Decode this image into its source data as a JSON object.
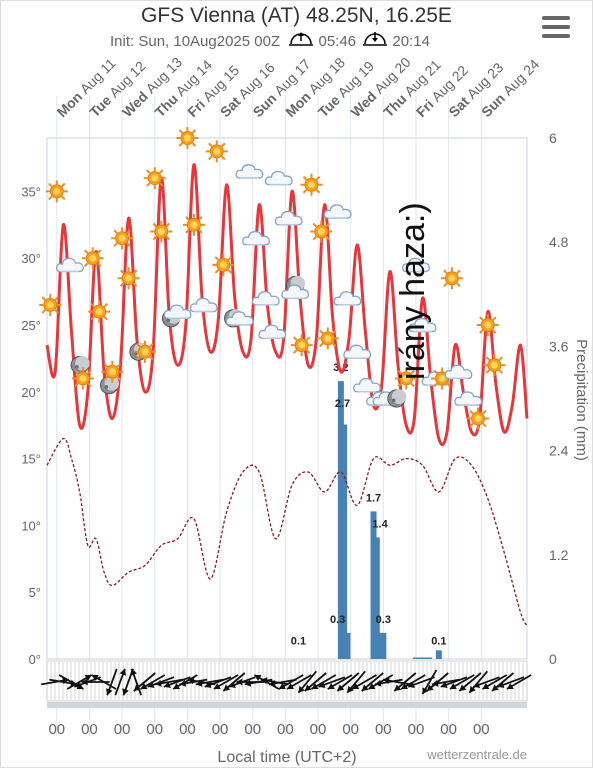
{
  "header": {
    "title": "GFS Vienna (AT) 48.25N, 16.25E",
    "init_label": "Init: Sun, 10Aug2025 00Z",
    "sunrise": "05:46",
    "sunset": "20:14"
  },
  "overlay_text": "irány haza:)",
  "credit": "wetterzentrale.de",
  "colors": {
    "temperature": "#e8363a",
    "dewpoint": "#8b1a1a",
    "precipitation": "#4682b4"
  },
  "chart_data": {
    "type": "line",
    "title": "GFS Vienna (AT) 48.25N, 16.25E",
    "xlabel": "Local time (UTC+2)",
    "ylabel_right": "Precipitation (mm)",
    "y_left_ticks": [
      "0°",
      "5°",
      "10°",
      "15°",
      "20°",
      "25°",
      "30°",
      "35°"
    ],
    "y_left_range": [
      0,
      39
    ],
    "y_right_ticks": [
      "0",
      "1.2",
      "2.4",
      "3.6",
      "4.8",
      "6"
    ],
    "y_right_range": [
      0,
      6
    ],
    "x_range": [
      0,
      14.7
    ],
    "day_labels": [
      {
        "day": "Mon",
        "date": "Aug 11"
      },
      {
        "day": "Tue",
        "date": "Aug 12"
      },
      {
        "day": "Wed",
        "date": "Aug 13"
      },
      {
        "day": "Thu",
        "date": "Aug 14"
      },
      {
        "day": "Fri",
        "date": "Aug 15"
      },
      {
        "day": "Sat",
        "date": "Aug 16"
      },
      {
        "day": "Sun",
        "date": "Aug 17"
      },
      {
        "day": "Mon",
        "date": "Aug 18"
      },
      {
        "day": "Tue",
        "date": "Aug 19"
      },
      {
        "day": "Wed",
        "date": "Aug 20"
      },
      {
        "day": "Thu",
        "date": "Aug 21"
      },
      {
        "day": "Fri",
        "date": "Aug 22"
      },
      {
        "day": "Sat",
        "date": "Aug 23"
      },
      {
        "day": "Sun",
        "date": "Aug 24"
      }
    ],
    "bottom_ticks": [
      "00",
      "00",
      "00",
      "00",
      "00",
      "00",
      "00",
      "00",
      "00",
      "00",
      "00",
      "00",
      "00",
      "00"
    ],
    "series": [
      {
        "name": "temperature",
        "x": [
          0.0,
          0.25,
          0.5,
          0.75,
          1.0,
          1.25,
          1.5,
          1.75,
          2.0,
          2.25,
          2.5,
          2.75,
          3.0,
          3.25,
          3.5,
          3.75,
          4.0,
          4.25,
          4.5,
          4.75,
          5.0,
          5.25,
          5.5,
          5.75,
          6.0,
          6.25,
          6.5,
          6.75,
          7.0,
          7.25,
          7.5,
          7.75,
          8.0,
          8.25,
          8.5,
          8.75,
          9.0,
          9.25,
          9.5,
          9.75,
          10.0,
          10.25,
          10.5,
          10.75,
          11.0,
          11.25,
          11.5,
          11.75,
          12.0,
          12.25,
          12.5,
          12.75,
          13.0,
          13.25,
          13.5,
          13.75,
          14.0,
          14.25,
          14.5,
          14.7
        ],
        "y": [
          23.5,
          21.5,
          32.5,
          24.5,
          17.5,
          20,
          30.5,
          21.5,
          18,
          22,
          33,
          24,
          20,
          23,
          36,
          25.5,
          22,
          25,
          37,
          27,
          23,
          25.5,
          35.5,
          27,
          23,
          24,
          34,
          26.5,
          23,
          24,
          35,
          27,
          22,
          24,
          34,
          25.5,
          21.5,
          24,
          31,
          24.5,
          19,
          20.5,
          29,
          22,
          17.5,
          18,
          27,
          21,
          16.5,
          17,
          23.5,
          20,
          17,
          18,
          26,
          20.5,
          17,
          19,
          23.5,
          18
        ]
      },
      {
        "name": "dewpoint",
        "x": [
          0.0,
          0.5,
          0.75,
          1.0,
          1.25,
          1.5,
          1.75,
          2.0,
          2.5,
          3.0,
          3.5,
          4.0,
          4.5,
          5.0,
          5.5,
          6.0,
          6.5,
          7.0,
          7.5,
          8.0,
          8.5,
          9.0,
          9.5,
          10.0,
          10.5,
          11.0,
          11.5,
          12.0,
          12.5,
          13.0,
          13.5,
          14.0,
          14.5,
          14.7
        ],
        "y": [
          14.5,
          16.5,
          15,
          12.5,
          8.5,
          9,
          6.5,
          5.5,
          6.5,
          7,
          8.5,
          9,
          10.5,
          6,
          11,
          14,
          14,
          9,
          13,
          14,
          12.5,
          14,
          11.5,
          15,
          14.5,
          15,
          14.5,
          12.5,
          15,
          14.5,
          12,
          8,
          3.5,
          2.5
        ]
      }
    ],
    "precipitation": {
      "x": [
        9.0,
        9.1,
        9.2,
        10.0,
        10.1,
        10.2,
        10.3,
        11.3,
        11.4,
        11.5,
        11.6,
        11.7,
        12.0
      ],
      "values": [
        3.2,
        2.7,
        0.3,
        1.7,
        1.4,
        0.3,
        0.3,
        0.0,
        0.0,
        0.0,
        0.0,
        0.0,
        0.1
      ]
    },
    "precip_labels": [
      {
        "x": 7.7,
        "text": "0.1"
      },
      {
        "x": 8.9,
        "text": "0.3"
      },
      {
        "x": 9.0,
        "text": "3.2"
      },
      {
        "x": 9.05,
        "text": "2.7"
      },
      {
        "x": 10.0,
        "text": "1.7"
      },
      {
        "x": 10.2,
        "text": "1.4"
      },
      {
        "x": 10.3,
        "text": "0.3"
      },
      {
        "x": 12.0,
        "text": "0.1"
      }
    ],
    "weather_icons": [
      {
        "x": 0.1,
        "y": 26.5,
        "icon": "sun"
      },
      {
        "x": 0.3,
        "y": 35,
        "icon": "sun"
      },
      {
        "x": 0.7,
        "y": 29.5,
        "icon": "cloud"
      },
      {
        "x": 1.0,
        "y": 22,
        "icon": "moon"
      },
      {
        "x": 1.1,
        "y": 21,
        "icon": "sun"
      },
      {
        "x": 1.4,
        "y": 30,
        "icon": "sun"
      },
      {
        "x": 1.6,
        "y": 26,
        "icon": "sun"
      },
      {
        "x": 1.9,
        "y": 20.5,
        "icon": "moon"
      },
      {
        "x": 2.0,
        "y": 21.5,
        "icon": "sun"
      },
      {
        "x": 2.3,
        "y": 31.5,
        "icon": "sun"
      },
      {
        "x": 2.5,
        "y": 28.5,
        "icon": "sun"
      },
      {
        "x": 2.8,
        "y": 23,
        "icon": "moon"
      },
      {
        "x": 3.0,
        "y": 23,
        "icon": "sun"
      },
      {
        "x": 3.3,
        "y": 36,
        "icon": "sun"
      },
      {
        "x": 3.5,
        "y": 32,
        "icon": "sun"
      },
      {
        "x": 3.8,
        "y": 25.5,
        "icon": "moon"
      },
      {
        "x": 4.0,
        "y": 26,
        "icon": "cloud"
      },
      {
        "x": 4.3,
        "y": 39,
        "icon": "sun"
      },
      {
        "x": 4.5,
        "y": 32.5,
        "icon": "sun"
      },
      {
        "x": 4.8,
        "y": 26.5,
        "icon": "cloud"
      },
      {
        "x": 5.2,
        "y": 38,
        "icon": "sun"
      },
      {
        "x": 5.4,
        "y": 29.5,
        "icon": "sun"
      },
      {
        "x": 5.7,
        "y": 25.5,
        "icon": "moon"
      },
      {
        "x": 5.9,
        "y": 25.5,
        "icon": "cloud"
      },
      {
        "x": 6.2,
        "y": 36.5,
        "icon": "cloud"
      },
      {
        "x": 6.4,
        "y": 31.5,
        "icon": "cloud"
      },
      {
        "x": 6.7,
        "y": 27,
        "icon": "cloud"
      },
      {
        "x": 6.9,
        "y": 24.5,
        "icon": "cloud"
      },
      {
        "x": 7.1,
        "y": 36,
        "icon": "cloud"
      },
      {
        "x": 7.4,
        "y": 33,
        "icon": "cloud"
      },
      {
        "x": 7.6,
        "y": 28,
        "icon": "moon"
      },
      {
        "x": 7.6,
        "y": 27.5,
        "icon": "cloud"
      },
      {
        "x": 7.8,
        "y": 23.5,
        "icon": "sun"
      },
      {
        "x": 8.1,
        "y": 35.5,
        "icon": "sun"
      },
      {
        "x": 8.4,
        "y": 32,
        "icon": "sun"
      },
      {
        "x": 8.6,
        "y": 24,
        "icon": "sun"
      },
      {
        "x": 8.9,
        "y": 33.5,
        "icon": "cloud"
      },
      {
        "x": 9.2,
        "y": 27,
        "icon": "cloud"
      },
      {
        "x": 9.5,
        "y": 23,
        "icon": "cloud"
      },
      {
        "x": 9.8,
        "y": 20.5,
        "icon": "cloud"
      },
      {
        "x": 10.2,
        "y": 19.5,
        "icon": "cloud"
      },
      {
        "x": 10.4,
        "y": 19.5,
        "icon": "cloud"
      },
      {
        "x": 10.7,
        "y": 19.5,
        "icon": "moon"
      },
      {
        "x": 11.0,
        "y": 21,
        "icon": "sun"
      },
      {
        "x": 11.3,
        "y": 29.5,
        "icon": "cloud"
      },
      {
        "x": 11.5,
        "y": 25,
        "icon": "cloud"
      },
      {
        "x": 11.9,
        "y": 21,
        "icon": "cloud"
      },
      {
        "x": 12.1,
        "y": 21,
        "icon": "sun"
      },
      {
        "x": 12.4,
        "y": 28.5,
        "icon": "sun"
      },
      {
        "x": 12.6,
        "y": 21.5,
        "icon": "cloud"
      },
      {
        "x": 12.9,
        "y": 19.5,
        "icon": "cloud"
      },
      {
        "x": 13.2,
        "y": 18,
        "icon": "sun"
      },
      {
        "x": 13.5,
        "y": 25,
        "icon": "sun"
      },
      {
        "x": 13.7,
        "y": 22,
        "icon": "sun"
      }
    ],
    "wind_directions_deg": [
      80,
      100,
      120,
      60,
      250,
      270,
      300,
      200,
      20,
      200,
      340,
      230,
      240,
      250,
      260,
      250,
      240,
      260,
      280,
      260,
      250,
      240,
      230,
      250,
      270,
      260,
      300,
      280,
      260,
      240,
      240,
      220,
      230,
      240,
      250,
      240,
      230,
      220,
      240,
      230,
      240,
      260,
      280,
      230,
      240,
      250,
      210,
      230,
      260,
      250,
      240,
      230,
      220,
      250,
      240,
      230,
      250,
      240
    ]
  }
}
